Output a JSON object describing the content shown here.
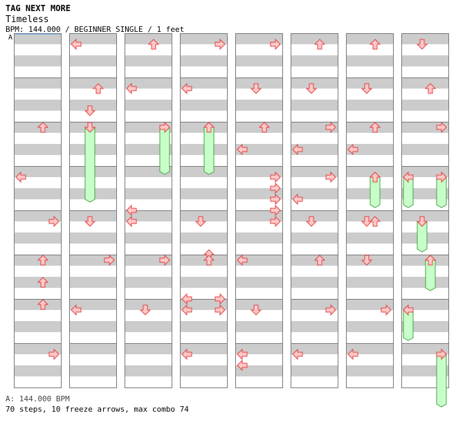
{
  "header": {
    "site_title": "TAG NEXT MORE",
    "song_title": "Timeless",
    "meta": "BPM: 144.000 / BEGINNER SINGLE / 1 feet"
  },
  "bpm_marker": "A",
  "bpm_legend": "A: 144.000 BPM",
  "summary": "70 steps, 10 freeze arrows, max combo 74",
  "colors": {
    "stripe": "#cccccc",
    "arrow_fill": "#ffc8c8",
    "arrow_stroke": "#e04040",
    "freeze_fill": "#c8ffc8",
    "freeze_stroke": "#40a040"
  },
  "chart": {
    "columns": 8,
    "measures_per_column": 8,
    "notes": [
      {
        "c": 0,
        "m": 2,
        "b": 0,
        "d": "U"
      },
      {
        "c": 0,
        "m": 3,
        "b": 0.5,
        "d": "L"
      },
      {
        "c": 0,
        "m": 4,
        "b": 0.5,
        "d": "R"
      },
      {
        "c": 0,
        "m": 5,
        "b": 0,
        "d": "U"
      },
      {
        "c": 0,
        "m": 5,
        "b": 2,
        "d": "U"
      },
      {
        "c": 0,
        "m": 6,
        "b": 0,
        "d": "U"
      },
      {
        "c": 0,
        "m": 7,
        "b": 0.5,
        "d": "R"
      },
      {
        "c": 1,
        "m": 0,
        "b": 0.5,
        "d": "L"
      },
      {
        "c": 1,
        "m": 1,
        "b": 0.5,
        "d": "U"
      },
      {
        "c": 1,
        "m": 1,
        "b": 2.5,
        "d": "D"
      },
      {
        "c": 1,
        "m": 2,
        "b": 0,
        "d": "D"
      },
      {
        "c": 1,
        "m": 4,
        "b": 0.5,
        "d": "D"
      },
      {
        "c": 1,
        "m": 5,
        "b": 0,
        "d": "R"
      },
      {
        "c": 1,
        "m": 6,
        "b": 0.5,
        "d": "L"
      },
      {
        "c": 2,
        "m": 0,
        "b": 0.5,
        "d": "U"
      },
      {
        "c": 2,
        "m": 1,
        "b": 0.5,
        "d": "L"
      },
      {
        "c": 2,
        "m": 2,
        "b": 0,
        "d": "R"
      },
      {
        "c": 2,
        "m": 3,
        "b": 3.5,
        "d": "L"
      },
      {
        "c": 2,
        "m": 4,
        "b": 0.5,
        "d": "L"
      },
      {
        "c": 2,
        "m": 5,
        "b": 0,
        "d": "R"
      },
      {
        "c": 2,
        "m": 6,
        "b": 0.5,
        "d": "D"
      },
      {
        "c": 3,
        "m": 0,
        "b": 0.5,
        "d": "R"
      },
      {
        "c": 3,
        "m": 1,
        "b": 0.5,
        "d": "L"
      },
      {
        "c": 3,
        "m": 2,
        "b": 0,
        "d": "U"
      },
      {
        "c": 3,
        "m": 4,
        "b": 0.5,
        "d": "D"
      },
      {
        "c": 3,
        "m": 4,
        "b": 3.5,
        "d": "U"
      },
      {
        "c": 3,
        "m": 5,
        "b": 0,
        "d": "U"
      },
      {
        "c": 3,
        "m": 5,
        "b": 3.5,
        "d": "L"
      },
      {
        "c": 3,
        "m": 5,
        "b": 3.5,
        "d": "R"
      },
      {
        "c": 3,
        "m": 6,
        "b": 0.5,
        "d": "L"
      },
      {
        "c": 3,
        "m": 6,
        "b": 0.5,
        "d": "R"
      },
      {
        "c": 3,
        "m": 7,
        "b": 0.5,
        "d": "L"
      },
      {
        "c": 4,
        "m": 0,
        "b": 0.5,
        "d": "R"
      },
      {
        "c": 4,
        "m": 1,
        "b": 0.5,
        "d": "D"
      },
      {
        "c": 4,
        "m": 2,
        "b": 0,
        "d": "U"
      },
      {
        "c": 4,
        "m": 2,
        "b": 2,
        "d": "L"
      },
      {
        "c": 4,
        "m": 3,
        "b": 0.5,
        "d": "R"
      },
      {
        "c": 4,
        "m": 3,
        "b": 1.5,
        "d": "R"
      },
      {
        "c": 4,
        "m": 3,
        "b": 2.5,
        "d": "R"
      },
      {
        "c": 4,
        "m": 3,
        "b": 3.5,
        "d": "R"
      },
      {
        "c": 4,
        "m": 4,
        "b": 0.5,
        "d": "R"
      },
      {
        "c": 4,
        "m": 5,
        "b": 0,
        "d": "L"
      },
      {
        "c": 4,
        "m": 6,
        "b": 0.5,
        "d": "D"
      },
      {
        "c": 4,
        "m": 7,
        "b": 0.5,
        "d": "L"
      },
      {
        "c": 4,
        "m": 7,
        "b": 1.5,
        "d": "L"
      },
      {
        "c": 5,
        "m": 0,
        "b": 0.5,
        "d": "U"
      },
      {
        "c": 5,
        "m": 1,
        "b": 0.5,
        "d": "D"
      },
      {
        "c": 5,
        "m": 2,
        "b": 0,
        "d": "R"
      },
      {
        "c": 5,
        "m": 2,
        "b": 2,
        "d": "L"
      },
      {
        "c": 5,
        "m": 3,
        "b": 0.5,
        "d": "R"
      },
      {
        "c": 5,
        "m": 3,
        "b": 2.5,
        "d": "L"
      },
      {
        "c": 5,
        "m": 4,
        "b": 0.5,
        "d": "D"
      },
      {
        "c": 5,
        "m": 5,
        "b": 0,
        "d": "U"
      },
      {
        "c": 5,
        "m": 6,
        "b": 0.5,
        "d": "R"
      },
      {
        "c": 5,
        "m": 7,
        "b": 0.5,
        "d": "L"
      },
      {
        "c": 6,
        "m": 0,
        "b": 0.5,
        "d": "U"
      },
      {
        "c": 6,
        "m": 1,
        "b": 0.5,
        "d": "D"
      },
      {
        "c": 6,
        "m": 2,
        "b": 0,
        "d": "U"
      },
      {
        "c": 6,
        "m": 2,
        "b": 2,
        "d": "L"
      },
      {
        "c": 6,
        "m": 3,
        "b": 0.5,
        "d": "U"
      },
      {
        "c": 6,
        "m": 4,
        "b": 0.5,
        "d": "D"
      },
      {
        "c": 6,
        "m": 4,
        "b": 0.5,
        "d": "U"
      },
      {
        "c": 6,
        "m": 5,
        "b": 0,
        "d": "D"
      },
      {
        "c": 6,
        "m": 6,
        "b": 0.5,
        "d": "R"
      },
      {
        "c": 6,
        "m": 7,
        "b": 0.5,
        "d": "L"
      },
      {
        "c": 7,
        "m": 0,
        "b": 0.5,
        "d": "D"
      },
      {
        "c": 7,
        "m": 1,
        "b": 0.5,
        "d": "U"
      },
      {
        "c": 7,
        "m": 2,
        "b": 0,
        "d": "R"
      },
      {
        "c": 7,
        "m": 3,
        "b": 0.5,
        "d": "L"
      },
      {
        "c": 7,
        "m": 3,
        "b": 0.5,
        "d": "R"
      },
      {
        "c": 7,
        "m": 4,
        "b": 0.5,
        "d": "D"
      },
      {
        "c": 7,
        "m": 5,
        "b": 0,
        "d": "U"
      },
      {
        "c": 7,
        "m": 6,
        "b": 0.5,
        "d": "L"
      },
      {
        "c": 7,
        "m": 7,
        "b": 0.5,
        "d": "R"
      }
    ],
    "freezes": [
      {
        "c": 1,
        "m": 2,
        "b": 0,
        "d": "D",
        "len": 6.5
      },
      {
        "c": 2,
        "m": 2,
        "b": 0,
        "d": "R",
        "len": 4
      },
      {
        "c": 3,
        "m": 2,
        "b": 0,
        "d": "U",
        "len": 4
      },
      {
        "c": 6,
        "m": 3,
        "b": 0.5,
        "d": "U",
        "len": 2.5
      },
      {
        "c": 7,
        "m": 3,
        "b": 0.5,
        "d": "L",
        "len": 2.5
      },
      {
        "c": 7,
        "m": 3,
        "b": 0.5,
        "d": "R",
        "len": 2.5
      },
      {
        "c": 7,
        "m": 4,
        "b": 0.5,
        "d": "D",
        "len": 2.5
      },
      {
        "c": 7,
        "m": 5,
        "b": 0,
        "d": "U",
        "len": 2.5
      },
      {
        "c": 7,
        "m": 6,
        "b": 0.5,
        "d": "L",
        "len": 2.5
      },
      {
        "c": 7,
        "m": 7,
        "b": 0.5,
        "d": "R",
        "len": 4.5
      }
    ]
  }
}
